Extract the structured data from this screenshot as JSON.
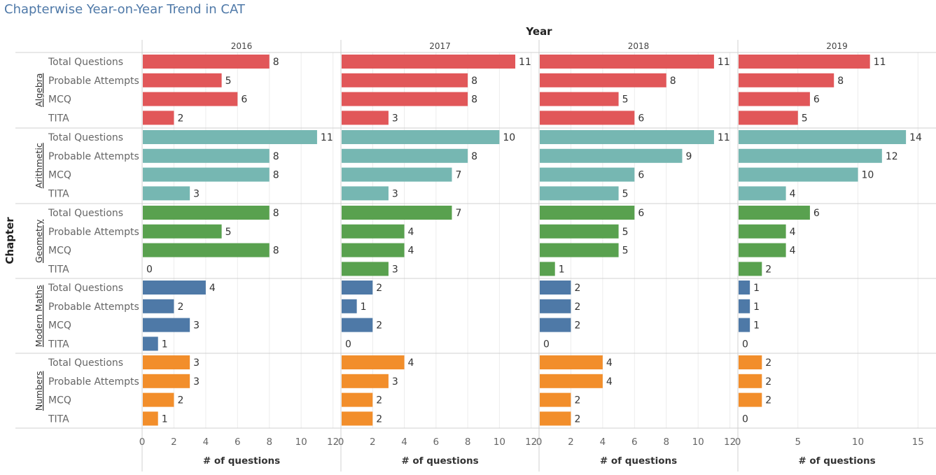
{
  "title": "Chapterwise Year-on-Year Trend in CAT",
  "chart_data": {
    "type": "bar",
    "orientation": "horizontal",
    "column_header": "Year",
    "row_header": "Chapter",
    "xlabel": "# of questions",
    "measures": [
      "Total Questions",
      "Probable Attempts",
      "MCQ",
      "TITA"
    ],
    "panels": [
      {
        "year": "2016",
        "xlim": [
          0,
          12.5
        ],
        "ticks": [
          "0",
          "2",
          "4",
          "6",
          "8",
          "10",
          "12"
        ],
        "tick_values": [
          0,
          2,
          4,
          6,
          8,
          10,
          12
        ]
      },
      {
        "year": "2017",
        "xlim": [
          0,
          12.5
        ],
        "ticks": [
          "0",
          "2",
          "4",
          "6",
          "8",
          "10",
          "12"
        ],
        "tick_values": [
          0,
          2,
          4,
          6,
          8,
          10,
          12
        ]
      },
      {
        "year": "2018",
        "xlim": [
          0,
          12.5
        ],
        "ticks": [
          "0",
          "2",
          "4",
          "6",
          "8",
          "10",
          "12"
        ],
        "tick_values": [
          0,
          2,
          4,
          6,
          8,
          10,
          12
        ]
      },
      {
        "year": "2019",
        "xlim": [
          0,
          16.5
        ],
        "ticks": [
          "0",
          "5",
          "10",
          "15"
        ],
        "tick_values": [
          0,
          5,
          10,
          15
        ]
      }
    ],
    "chapters": [
      {
        "name": "Algebra",
        "color": "#e15759",
        "values": {
          "2016": [
            8,
            5,
            6,
            2
          ],
          "2017": [
            11,
            8,
            8,
            3
          ],
          "2018": [
            11,
            8,
            5,
            6
          ],
          "2019": [
            11,
            8,
            6,
            5
          ]
        }
      },
      {
        "name": "Arithmetic",
        "color": "#76b7b2",
        "values": {
          "2016": [
            11,
            8,
            8,
            3
          ],
          "2017": [
            10,
            8,
            7,
            3
          ],
          "2018": [
            11,
            9,
            6,
            5
          ],
          "2019": [
            14,
            12,
            10,
            4
          ]
        }
      },
      {
        "name": "Geometry",
        "color": "#59a14f",
        "values": {
          "2016": [
            8,
            5,
            8,
            0
          ],
          "2017": [
            7,
            4,
            4,
            3
          ],
          "2018": [
            6,
            5,
            5,
            1
          ],
          "2019": [
            6,
            4,
            4,
            2
          ]
        }
      },
      {
        "name": "Modern Maths",
        "color": "#4e79a7",
        "values": {
          "2016": [
            4,
            2,
            3,
            1
          ],
          "2017": [
            2,
            1,
            2,
            0
          ],
          "2018": [
            2,
            2,
            2,
            0
          ],
          "2019": [
            1,
            1,
            1,
            0
          ]
        }
      },
      {
        "name": "Numbers",
        "color": "#f28e2b",
        "values": {
          "2016": [
            3,
            3,
            2,
            1
          ],
          "2017": [
            4,
            3,
            2,
            2
          ],
          "2018": [
            4,
            4,
            2,
            2
          ],
          "2019": [
            2,
            2,
            2,
            0
          ]
        }
      }
    ],
    "grid": true,
    "legend": "none"
  }
}
